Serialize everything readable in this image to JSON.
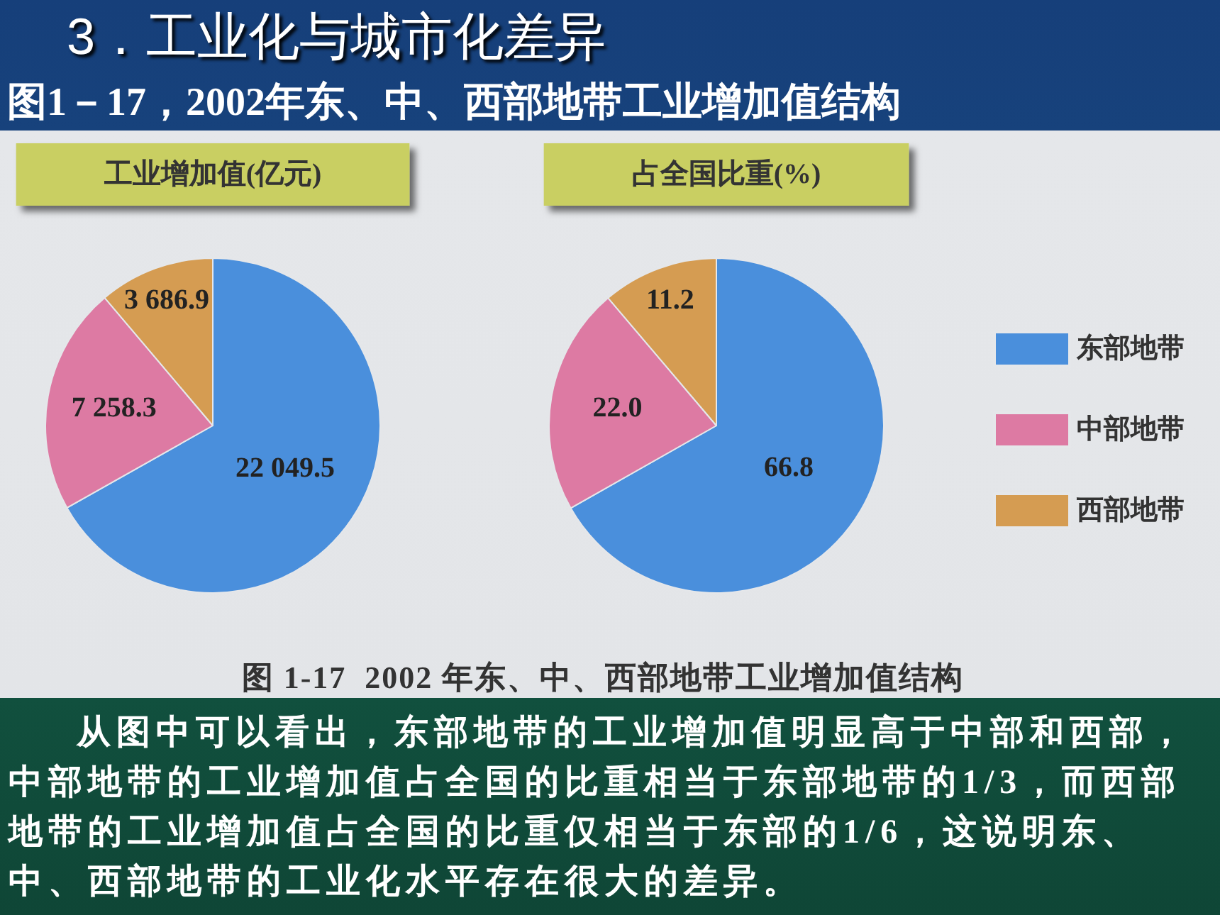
{
  "chart_data": [
    {
      "type": "pie",
      "title": "工业增加值(亿元)",
      "categories": [
        null,
        null,
        null
      ],
      "values": [
        22049.5,
        7258.3,
        3686.9
      ],
      "value_labels": [
        "22 049.5",
        "7 258.3",
        "3 686.9"
      ],
      "colors": [
        "#4a8fdc",
        "#dd7aa3",
        "#d59c52"
      ],
      "annotations": [
        "3．工业化与城市化差异",
        "图1－17，2002年东、中、西部地带工业增加值结构",
        "图 1-17  2002 年东、中、西部地带工业增加值结构",
        "从图中可以看出，东部地带的工业增加值明显高于中部和西部，中部地带的工业增加值占全国的比重相当于东部地带的1/3，而西部地带的工业增加值占全国的比重仅相当于东部的1/6，这说明东、中、西部地带的工业化水平存在很大的差异。"
      ]
    },
    {
      "type": "pie",
      "title": "占全国比重(%)",
      "categories": [
        "东部地带",
        "中部地带",
        "西部地带"
      ],
      "values": [
        66.8,
        22.0,
        11.2
      ],
      "value_labels": [
        "66.8",
        "22.0",
        "11.2"
      ],
      "colors": [
        "#4a8fdc",
        "#dd7aa3",
        "#d59c52"
      ],
      "legend": "right"
    }
  ]
}
